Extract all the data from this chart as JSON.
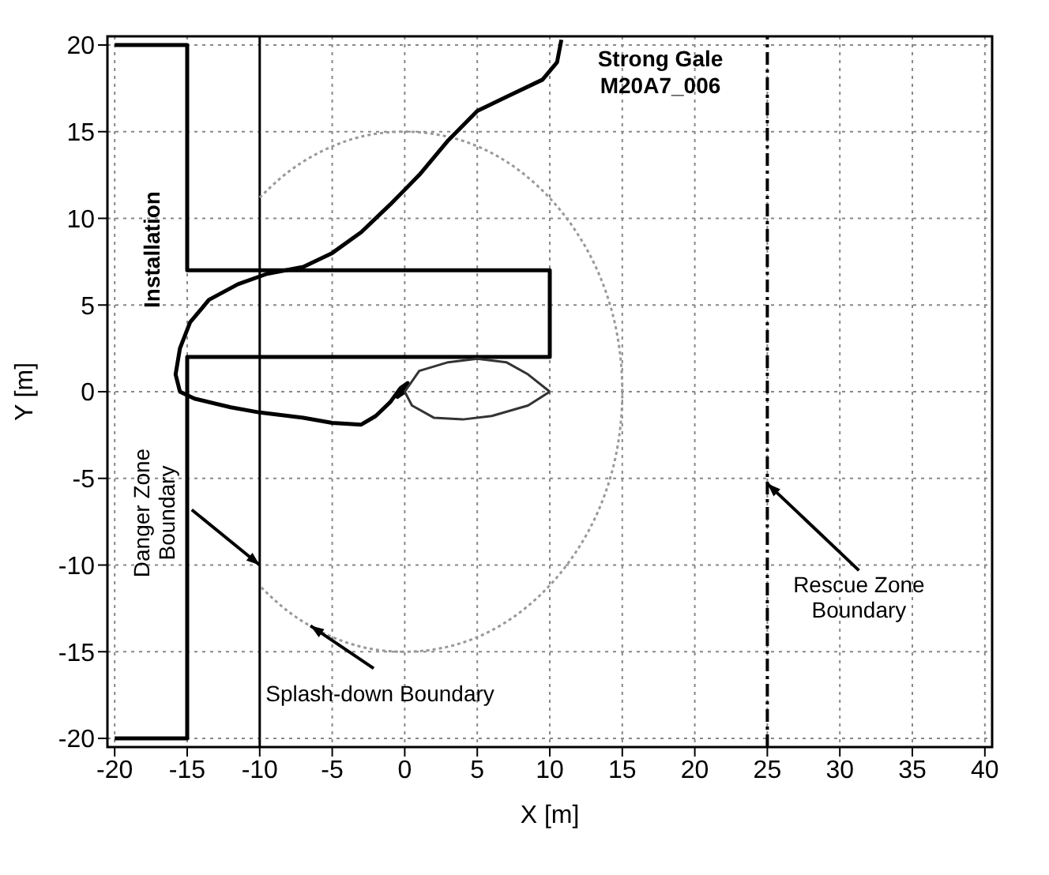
{
  "chart_data": {
    "type": "line",
    "title": "Strong Gale",
    "subtitle": "M20A7_006",
    "xlabel": "X [m]",
    "ylabel": "Y [m]",
    "xlim": [
      -20.5,
      40.5
    ],
    "ylim": [
      -20.5,
      20.5
    ],
    "xticks": [
      -20,
      -15,
      -10,
      -5,
      0,
      5,
      10,
      15,
      20,
      25,
      30,
      35,
      40
    ],
    "yticks": [
      -20,
      -15,
      -10,
      -5,
      0,
      5,
      10,
      15,
      20
    ],
    "grid": true,
    "legend": false,
    "marker": "none",
    "series": [
      {
        "color": "#000000",
        "x": [
          -20,
          -15,
          -15,
          10,
          10,
          -15,
          -15,
          -20
        ],
        "values": [
          20,
          20,
          7,
          7,
          2,
          2,
          -20,
          -20
        ]
      },
      {
        "color": "#999999",
        "line_style": "dotted",
        "x": [
          -10,
          -7.5,
          -3.9,
          0,
          3.9,
          7.5,
          10.6,
          13,
          14.5,
          15,
          14.5,
          13,
          10.6,
          7.5,
          3.9,
          0,
          -3.9,
          -7.5,
          -10
        ],
        "values": [
          11.2,
          13,
          14.5,
          15,
          14.5,
          13,
          10.6,
          7.5,
          3.9,
          0,
          -3.9,
          -7.5,
          -10.6,
          -13,
          -14.5,
          -15,
          -14.5,
          -13,
          -11.2
        ]
      },
      {
        "color": "#000000",
        "x": [
          10.8,
          10.5,
          9.5,
          7,
          5,
          3,
          1,
          -1,
          -3,
          -5,
          -7,
          -9.5,
          -11.5,
          -13.5,
          -14.8,
          -15.5,
          -15.8,
          -15.5,
          -14.5,
          -12,
          -10,
          -7,
          -5,
          -3,
          -2,
          -1,
          -0.3,
          0.2,
          -0.5,
          0
        ],
        "values": [
          20.3,
          19,
          18,
          17,
          16.2,
          14.5,
          12.5,
          10.8,
          9.2,
          8,
          7.2,
          6.8,
          6.2,
          5.3,
          4,
          2.5,
          1,
          0,
          -0.4,
          -0.9,
          -1.2,
          -1.5,
          -1.8,
          -1.9,
          -1.4,
          -0.6,
          0.2,
          0.5,
          -0.3,
          0
        ]
      },
      {
        "color": "#333333",
        "x": [
          0,
          1,
          3,
          5,
          7,
          8.5,
          10
        ],
        "values": [
          0,
          1.2,
          1.7,
          1.9,
          1.7,
          1,
          0
        ]
      },
      {
        "color": "#333333",
        "x": [
          0,
          0.5,
          2,
          4,
          6,
          8.5,
          10
        ],
        "values": [
          0,
          -0.8,
          -1.5,
          -1.6,
          -1.4,
          -0.8,
          0
        ]
      }
    ],
    "ref_lines": [
      {
        "axis": "x",
        "value": -10,
        "color": "#000000",
        "line_style": "solid"
      },
      {
        "axis": "x",
        "value": 25,
        "color": "#000000",
        "line_style": "dashed"
      }
    ],
    "annotations": [
      "Installation",
      {
        "text": "Danger Zone Boundary",
        "x": -10,
        "y": -10
      },
      {
        "text": "Splash-down Boundary",
        "x": -6.5,
        "y": -13.5
      },
      {
        "text": "Rescue Zone Boundary",
        "x": 25,
        "y": -5.3
      }
    ]
  }
}
